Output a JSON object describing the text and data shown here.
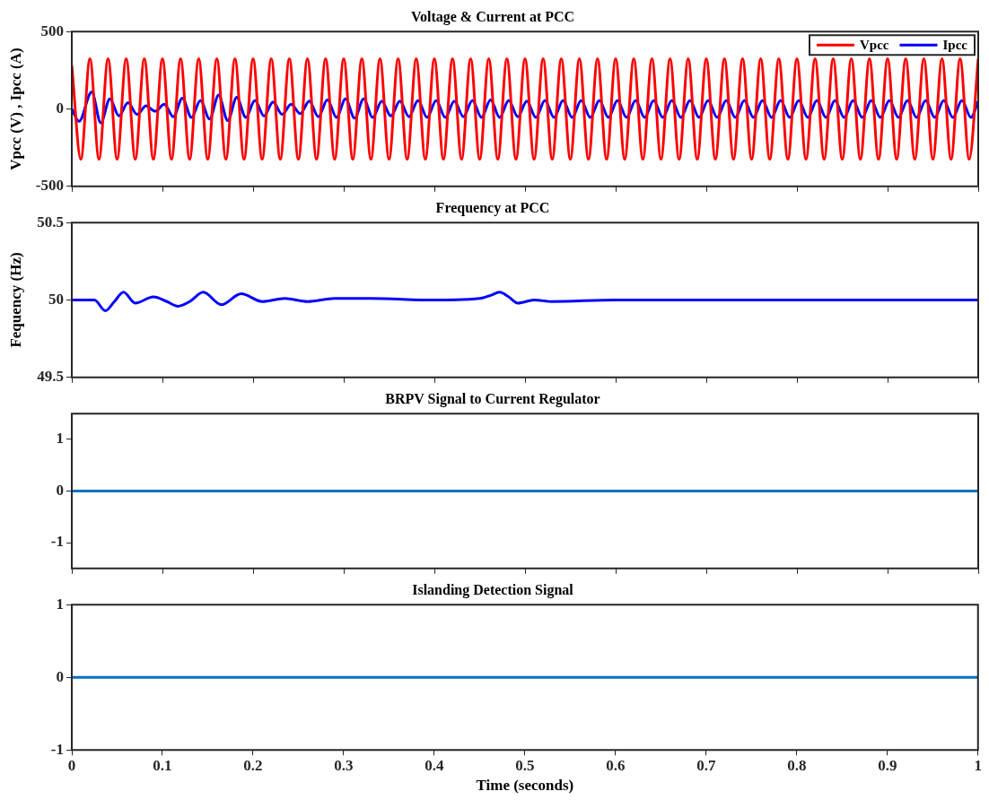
{
  "chart_data": [
    {
      "type": "line",
      "title": "Voltage & Current at PCC",
      "ylabel": "Vpcc (V) , Ipcc (A)",
      "xlim": [
        0,
        1
      ],
      "xticks": [
        0,
        0.1,
        0.2,
        0.3,
        0.4,
        0.5,
        0.6,
        0.7,
        0.8,
        0.9,
        1
      ],
      "ylim": [
        -500,
        500
      ],
      "yticks": [
        -500,
        0,
        500
      ],
      "grid": false,
      "legend": "top right",
      "tick_labels": "y",
      "series": [
        {
          "name": "Vpcc",
          "color": "#ff0000",
          "x": [
            0,
            0.01,
            0.02,
            0.03,
            0.04,
            0.05,
            0.06,
            0.07,
            0.08,
            0.09,
            0.1,
            0.11,
            0.12,
            0.13,
            0.14,
            0.15,
            0.16,
            0.17,
            0.18,
            0.19,
            0.2,
            0.21,
            0.22,
            0.23,
            0.24,
            0.25,
            0.26,
            0.27,
            0.28,
            0.29,
            0.3,
            0.31,
            0.32,
            0.33,
            0.34,
            0.35,
            0.36,
            0.37,
            0.38,
            0.39,
            0.4,
            0.41,
            0.42,
            0.43,
            0.44,
            0.45,
            0.46,
            0.47,
            0.48,
            0.49,
            0.5,
            0.51,
            0.52,
            0.53,
            0.54,
            0.55,
            0.56,
            0.57,
            0.58,
            0.59,
            0.6,
            0.61,
            0.62,
            0.63,
            0.64,
            0.65,
            0.66,
            0.67,
            0.68,
            0.69,
            0.7,
            0.71,
            0.72,
            0.73,
            0.74,
            0.75,
            0.76,
            0.77,
            0.78,
            0.79,
            0.8,
            0.81,
            0.82,
            0.83,
            0.84,
            0.85,
            0.86,
            0.87,
            0.88,
            0.89,
            0.9,
            0.91,
            0.92,
            0.93,
            0.94,
            0.95,
            0.96,
            0.97,
            0.98,
            0.99,
            1
          ],
          "values": [
            280,
            -325,
            325,
            -325,
            325,
            -325,
            325,
            -325,
            325,
            -325,
            325,
            -325,
            325,
            -325,
            325,
            -325,
            325,
            -325,
            325,
            -325,
            325,
            -325,
            325,
            -325,
            325,
            -325,
            325,
            -325,
            325,
            -325,
            325,
            -325,
            325,
            -325,
            325,
            -325,
            325,
            -325,
            325,
            -325,
            325,
            -325,
            325,
            -325,
            325,
            -325,
            325,
            -325,
            325,
            -325,
            325,
            -325,
            325,
            -325,
            325,
            -325,
            325,
            -325,
            325,
            -325,
            325,
            -325,
            325,
            -325,
            325,
            -325,
            325,
            -325,
            325,
            -325,
            325,
            -325,
            325,
            -325,
            325,
            -325,
            325,
            -325,
            325,
            -325,
            325,
            -325,
            325,
            -325,
            325,
            -325,
            325,
            -325,
            325,
            -325,
            325,
            -325,
            325,
            -325,
            325,
            -325,
            325,
            -325,
            325,
            -325,
            325
          ]
        },
        {
          "name": "Ipcc",
          "color": "#0000ff",
          "x": [
            0,
            0.008,
            0.022,
            0.032,
            0.042,
            0.052,
            0.062,
            0.072,
            0.082,
            0.092,
            0.102,
            0.112,
            0.122,
            0.132,
            0.142,
            0.152,
            0.162,
            0.172,
            0.182,
            0.192,
            0.202,
            0.212,
            0.222,
            0.232,
            0.242,
            0.252,
            0.262,
            0.272,
            0.282,
            0.292,
            0.302,
            0.312,
            0.322,
            0.332,
            0.342,
            0.352,
            0.362,
            0.372,
            0.382,
            0.392,
            0.402,
            0.412,
            0.422,
            0.432,
            0.442,
            0.452,
            0.462,
            0.472,
            0.482,
            0.492,
            0.502,
            0.512,
            0.522,
            0.532,
            0.542,
            0.552,
            0.562,
            0.572,
            0.582,
            0.592,
            0.602,
            0.612,
            0.622,
            0.632,
            0.642,
            0.652,
            0.662,
            0.672,
            0.682,
            0.692,
            0.702,
            0.712,
            0.722,
            0.732,
            0.742,
            0.752,
            0.762,
            0.772,
            0.782,
            0.792,
            0.802,
            0.812,
            0.822,
            0.832,
            0.842,
            0.852,
            0.862,
            0.872,
            0.882,
            0.892,
            0.902,
            0.912,
            0.922,
            0.932,
            0.942,
            0.952,
            0.962,
            0.972,
            0.982,
            0.992,
            1
          ],
          "values": [
            0,
            -80,
            110,
            -90,
            65,
            -45,
            40,
            -35,
            20,
            -15,
            30,
            -50,
            70,
            -55,
            55,
            -65,
            90,
            -75,
            75,
            -55,
            55,
            -45,
            45,
            -35,
            30,
            -30,
            50,
            -50,
            60,
            -55,
            65,
            -60,
            65,
            -55,
            50,
            -45,
            50,
            -50,
            55,
            -55,
            55,
            -55,
            50,
            -50,
            55,
            -55,
            60,
            -55,
            55,
            -50,
            50,
            -55,
            55,
            -55,
            55,
            -55,
            55,
            -55,
            55,
            -55,
            55,
            -55,
            55,
            -55,
            55,
            -55,
            55,
            -55,
            55,
            -55,
            55,
            -55,
            55,
            -55,
            55,
            -55,
            55,
            -55,
            55,
            -55,
            55,
            -55,
            55,
            -55,
            55,
            -55,
            55,
            -55,
            55,
            -55,
            55,
            -55,
            55,
            -55,
            55,
            -55,
            55,
            -55,
            55,
            -55,
            50
          ]
        }
      ]
    },
    {
      "type": "line",
      "title": "Frequency at PCC",
      "ylabel": "Fequency (Hz)",
      "xlim": [
        0,
        1
      ],
      "xticks": [
        0,
        0.1,
        0.2,
        0.3,
        0.4,
        0.5,
        0.6,
        0.7,
        0.8,
        0.9,
        1
      ],
      "ylim": [
        49.5,
        50.5
      ],
      "yticks": [
        49.5,
        50,
        50.5
      ],
      "grid": false,
      "tick_labels": "y",
      "series": [
        {
          "color": "#0000ff",
          "x": [
            0,
            0.025,
            0.037,
            0.047,
            0.057,
            0.07,
            0.09,
            0.105,
            0.117,
            0.13,
            0.145,
            0.165,
            0.187,
            0.21,
            0.235,
            0.26,
            0.29,
            0.33,
            0.4,
            0.45,
            0.462,
            0.472,
            0.482,
            0.492,
            0.51,
            0.53,
            0.6,
            0.7,
            1
          ],
          "values": [
            50,
            50,
            49.93,
            49.99,
            50.05,
            49.98,
            50.02,
            49.99,
            49.96,
            49.99,
            50.05,
            49.97,
            50.04,
            49.99,
            50.01,
            49.99,
            50.01,
            50.01,
            50,
            50.01,
            50.03,
            50.05,
            50.02,
            49.98,
            50,
            49.99,
            50,
            50,
            50
          ]
        }
      ]
    },
    {
      "type": "line",
      "title": "BRPV Signal to Current Regulator",
      "xlim": [
        0,
        1
      ],
      "xticks": [
        0,
        0.1,
        0.2,
        0.3,
        0.4,
        0.5,
        0.6,
        0.7,
        0.8,
        0.9,
        1
      ],
      "ylim": [
        -1.5,
        1.5
      ],
      "yticks": [
        -1,
        0,
        1
      ],
      "grid": false,
      "tick_labels": "y",
      "series": [
        {
          "color": "#0072bd",
          "x": [
            0,
            1
          ],
          "values": [
            0,
            0
          ]
        }
      ]
    },
    {
      "type": "line",
      "title": "Islanding Detection Signal",
      "xlabel": "Time (seconds)",
      "xlim": [
        0,
        1
      ],
      "xticks": [
        0,
        0.1,
        0.2,
        0.3,
        0.4,
        0.5,
        0.6,
        0.7,
        0.8,
        0.9,
        1
      ],
      "ylim": [
        -1,
        1
      ],
      "yticks": [
        -1,
        0,
        1
      ],
      "grid": false,
      "series": [
        {
          "color": "#0072bd",
          "x": [
            0,
            1
          ],
          "values": [
            0,
            0
          ]
        }
      ]
    }
  ]
}
